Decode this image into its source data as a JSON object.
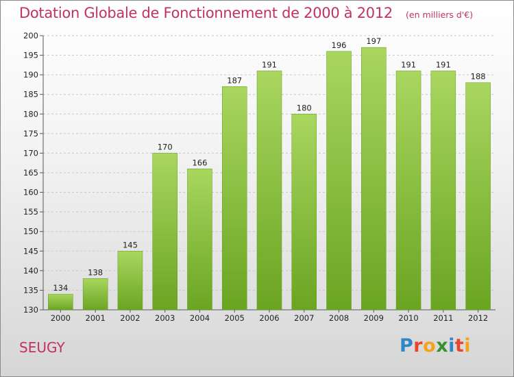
{
  "title": "Dotation Globale de Fonctionnement de 2000 à 2012",
  "unit": "(en milliers d'€)",
  "city": "SEUGY",
  "logo": {
    "letters": [
      "P",
      "r",
      "o",
      "x",
      "i",
      "t",
      "i"
    ],
    "colors": [
      "#2f86c8",
      "#e8462c",
      "#f5a21c",
      "#3a8f2e",
      "#2f86c8",
      "#e8462c",
      "#f5a21c"
    ]
  },
  "colors": {
    "bar_light": "#a9d65f",
    "bar_dark": "#6aa522",
    "title": "#c0335f"
  },
  "chart_data": {
    "type": "bar",
    "categories": [
      "2000",
      "2001",
      "2002",
      "2003",
      "2004",
      "2005",
      "2006",
      "2007",
      "2008",
      "2009",
      "2010",
      "2011",
      "2012"
    ],
    "values": [
      134,
      138,
      145,
      170,
      166,
      187,
      191,
      180,
      196,
      197,
      191,
      191,
      188
    ],
    "ylim": [
      130,
      200
    ],
    "yticks": [
      130,
      135,
      140,
      145,
      150,
      155,
      160,
      165,
      170,
      175,
      180,
      185,
      190,
      195,
      200
    ],
    "grid": "horizontal",
    "legend": "none"
  }
}
